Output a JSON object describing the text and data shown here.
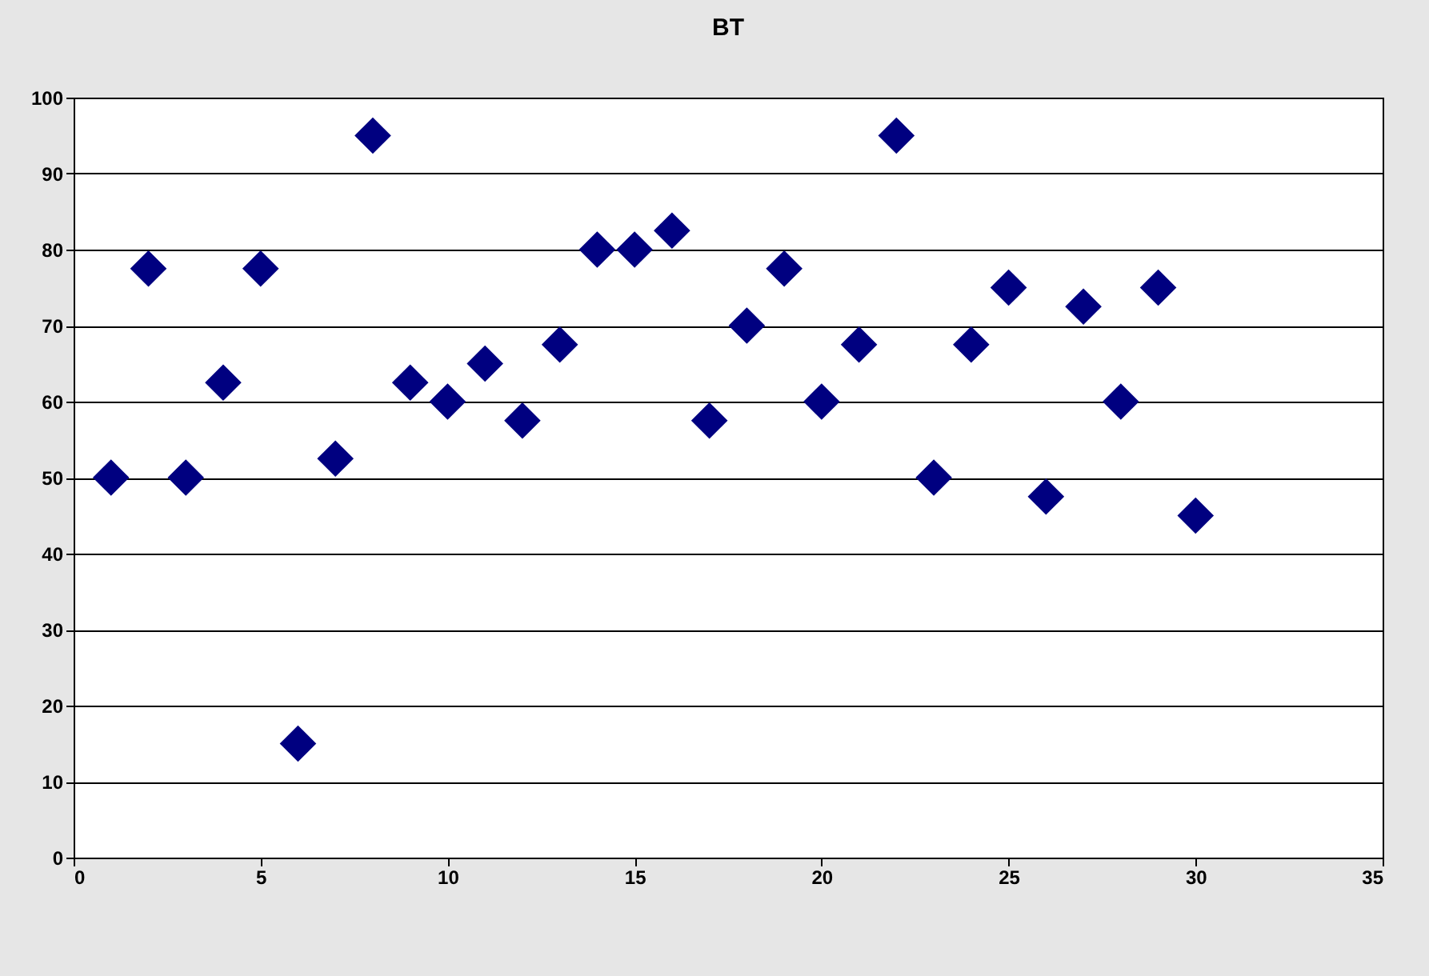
{
  "chart_data": {
    "type": "scatter",
    "title": "BT",
    "x": [
      1,
      2,
      3,
      4,
      5,
      6,
      7,
      8,
      9,
      10,
      11,
      12,
      13,
      14,
      15,
      16,
      17,
      18,
      19,
      20,
      21,
      22,
      23,
      24,
      25,
      26,
      27,
      28,
      29,
      30
    ],
    "series": [
      {
        "color": "#000080",
        "values": [
          50,
          77.5,
          50,
          62.5,
          77.5,
          15,
          52.5,
          95,
          62.5,
          60,
          65,
          57.5,
          67.5,
          80,
          80,
          82.5,
          57.5,
          70,
          77.5,
          60,
          67.5,
          95,
          50,
          67.5,
          75,
          47.5,
          72.5,
          60,
          75,
          45
        ]
      }
    ],
    "xlim": [
      0,
      35
    ],
    "xticks": [
      0,
      5,
      10,
      15,
      20,
      25,
      30,
      35
    ],
    "ylim": [
      0,
      100
    ],
    "yticks": [
      0,
      10,
      20,
      30,
      40,
      50,
      60,
      70,
      80,
      90,
      100
    ],
    "grid": "y",
    "marker": "diamond",
    "legend": false
  }
}
